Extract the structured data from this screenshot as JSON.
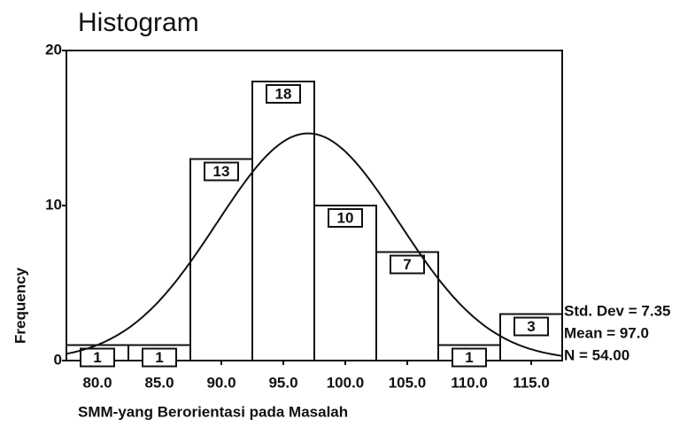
{
  "chart_data": {
    "type": "histogram",
    "title": "Histogram",
    "x_label": "SMM-yang Berorientasi pada Masalah",
    "y_label": "Frequency",
    "bins": [
      77.5,
      82.5,
      87.5,
      92.5,
      97.5,
      102.5,
      107.5,
      112.5,
      117.5
    ],
    "values": [
      1,
      1,
      13,
      18,
      10,
      7,
      1,
      3
    ],
    "color": "#ffffff",
    "xlim": [
      77.5,
      117.5
    ],
    "xticks": [
      {
        "value": 80,
        "label": "80.0"
      },
      {
        "value": 85,
        "label": "85.0"
      },
      {
        "value": 90,
        "label": "90.0"
      },
      {
        "value": 95,
        "label": "95.0"
      },
      {
        "value": 100,
        "label": "100.0"
      },
      {
        "value": 105,
        "label": "105.0"
      },
      {
        "value": 110,
        "label": "110.0"
      },
      {
        "value": 115,
        "label": "115.0"
      }
    ],
    "ylim": [
      0,
      20
    ],
    "yticks": [
      0,
      10,
      20
    ],
    "normal_curve": {
      "sd": 7.35,
      "mean": 97.0,
      "n": 54,
      "labels": [
        "Std. Dev = 7.35",
        "Mean = 97.0",
        "N = 54.00"
      ]
    }
  }
}
